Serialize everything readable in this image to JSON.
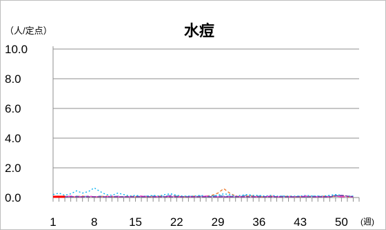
{
  "chart_data": {
    "type": "line",
    "title": "水痘",
    "y_unit_label": "（人/定点）",
    "x_unit_label": "(週)",
    "ylim": [
      0,
      10
    ],
    "yticks": [
      "0.0",
      "2.0",
      "4.0",
      "6.0",
      "8.0",
      "10.0"
    ],
    "xlim": [
      1,
      53
    ],
    "xticks": [
      "1",
      "8",
      "15",
      "22",
      "29",
      "36",
      "43",
      "50"
    ],
    "grid": true,
    "legend": "none",
    "series": [
      {
        "color": "#5b9bd5",
        "dash": "8 3",
        "x": [
          1,
          2,
          3,
          4,
          5,
          6,
          7,
          8,
          9,
          10,
          11,
          12,
          13,
          14,
          15,
          16,
          17,
          18,
          19,
          20,
          21,
          22,
          23,
          24,
          25,
          26,
          27,
          28,
          29,
          30,
          31,
          32,
          33,
          34,
          35,
          36,
          37,
          38,
          39,
          40,
          41,
          42,
          43,
          44,
          45,
          46,
          47,
          48,
          49,
          50,
          51,
          52
        ],
        "y": [
          0.05,
          0.1,
          0.05,
          0.05,
          0.1,
          0.05,
          0.1,
          0.05,
          0.1,
          0.05,
          0.05,
          0.1,
          0.05,
          0.05,
          0.1,
          0.05,
          0.1,
          0.1,
          0.05,
          0.1,
          0.15,
          0.1,
          0.05,
          0.1,
          0.05,
          0.1,
          0.05,
          0.1,
          0.15,
          0.1,
          0.1,
          0.05,
          0.1,
          0.15,
          0.1,
          0.1,
          0.05,
          0.1,
          0.05,
          0.1,
          0.05,
          0.05,
          0.1,
          0.05,
          0.1,
          0.1,
          0.05,
          0.1,
          0.15,
          0.1,
          0.05,
          0.1
        ]
      },
      {
        "color": "#ed7d31",
        "dash": "4 3",
        "x": [
          1,
          2,
          3,
          4,
          5,
          6,
          7,
          8,
          9,
          10,
          11,
          12,
          13,
          14,
          15,
          16,
          17,
          18,
          19,
          20,
          21,
          22,
          23,
          24,
          25,
          26,
          27,
          28,
          29,
          30,
          31,
          32,
          33,
          34,
          35,
          36,
          37,
          38,
          39,
          40,
          41,
          42,
          43,
          44,
          45,
          46,
          47,
          48,
          49,
          50,
          51,
          52
        ],
        "y": [
          0.05,
          0.05,
          0.1,
          0.05,
          0.05,
          0.1,
          0.05,
          0.05,
          0.05,
          0.1,
          0.05,
          0.05,
          0.05,
          0.1,
          0.05,
          0.1,
          0.05,
          0.05,
          0.1,
          0.05,
          0.05,
          0.1,
          0.05,
          0.05,
          0.1,
          0.05,
          0.1,
          0.15,
          0.3,
          0.6,
          0.3,
          0.1,
          0.05,
          0.1,
          0.1,
          0.05,
          0.05,
          0.1,
          0.05,
          0.05,
          0.1,
          0.05,
          0.05,
          0.1,
          0.05,
          0.05,
          0.1,
          0.05,
          0.1,
          0.1,
          0.05,
          0.05
        ]
      },
      {
        "color": "#00b0f0",
        "dash": "2 3",
        "x": [
          1,
          2,
          3,
          4,
          5,
          6,
          7,
          8,
          9,
          10,
          11,
          12,
          13,
          14,
          15,
          16,
          17,
          18,
          19,
          20,
          21,
          22,
          23,
          24,
          25,
          26,
          27,
          28,
          29,
          30,
          31,
          32,
          33,
          34,
          35,
          36,
          37,
          38,
          39,
          40,
          41,
          42,
          43,
          44,
          45,
          46,
          47,
          48,
          49,
          50,
          51,
          52
        ],
        "y": [
          0.2,
          0.3,
          0.15,
          0.25,
          0.45,
          0.3,
          0.4,
          0.65,
          0.4,
          0.2,
          0.15,
          0.3,
          0.2,
          0.1,
          0.15,
          0.1,
          0.1,
          0.15,
          0.1,
          0.2,
          0.25,
          0.15,
          0.1,
          0.1,
          0.1,
          0.15,
          0.1,
          0.1,
          0.15,
          0.25,
          0.2,
          0.1,
          0.15,
          0.2,
          0.15,
          0.15,
          0.1,
          0.15,
          0.1,
          0.1,
          0.1,
          0.1,
          0.1,
          0.15,
          0.1,
          0.1,
          0.1,
          0.15,
          0.2,
          0.15,
          0.1,
          0.1
        ]
      },
      {
        "color": "#ff33cc",
        "dash": "10 3 2 3",
        "x": [
          1,
          2,
          3,
          4,
          5,
          6,
          7,
          8,
          9,
          10,
          11,
          12,
          13,
          14,
          15,
          16,
          17,
          18,
          19,
          20,
          21,
          22,
          23,
          24,
          25,
          26,
          27,
          28,
          29,
          30,
          31,
          32,
          33,
          34,
          35,
          36,
          37,
          38,
          39,
          40,
          41,
          42,
          43,
          44,
          45,
          46,
          47,
          48,
          49,
          50,
          51,
          52
        ],
        "y": [
          0.05,
          0.05,
          0.05,
          0.1,
          0.05,
          0.05,
          0.1,
          0.05,
          0.05,
          0.05,
          0.1,
          0.05,
          0.05,
          0.05,
          0.05,
          0.1,
          0.05,
          0.05,
          0.05,
          0.05,
          0.1,
          0.05,
          0.05,
          0.05,
          0.05,
          0.05,
          0.1,
          0.05,
          0.05,
          0.05,
          0.05,
          0.1,
          0.05,
          0.05,
          0.05,
          0.05,
          0.05,
          0.1,
          0.05,
          0.05,
          0.05,
          0.05,
          0.05,
          0.1,
          0.05,
          0.05,
          0.05,
          0.05,
          0.1,
          0.05,
          0.05,
          0.05
        ]
      },
      {
        "color": "#7030a0",
        "dash": "6 2",
        "x": [
          1,
          2,
          3,
          4,
          5,
          6,
          7,
          8,
          9,
          10,
          11,
          12,
          13,
          14,
          15,
          16,
          17,
          18,
          19,
          20,
          21,
          22,
          23,
          24,
          25,
          26,
          27,
          28,
          29,
          30,
          31,
          32,
          33,
          34,
          35,
          36,
          37,
          38,
          39,
          40,
          41,
          42,
          43,
          44,
          45,
          46,
          47,
          48,
          49,
          50,
          51,
          52
        ],
        "y": [
          0.05,
          0.05,
          0.05,
          0.05,
          0.05,
          0.05,
          0.05,
          0.05,
          0.05,
          0.05,
          0.05,
          0.05,
          0.05,
          0.05,
          0.05,
          0.05,
          0.05,
          0.05,
          0.05,
          0.05,
          0.05,
          0.05,
          0.05,
          0.05,
          0.05,
          0.05,
          0.05,
          0.05,
          0.05,
          0.05,
          0.05,
          0.05,
          0.05,
          0.05,
          0.05,
          0.05,
          0.05,
          0.05,
          0.05,
          0.05,
          0.05,
          0.05,
          0.05,
          0.05,
          0.05,
          0.05,
          0.05,
          0.05,
          0.1,
          0.15,
          0.1,
          0.05
        ]
      },
      {
        "color": "#ff0000",
        "dash": "",
        "width": 3,
        "x": [
          1,
          2,
          3
        ],
        "y": [
          0.05,
          0.05,
          0.05
        ]
      }
    ]
  }
}
